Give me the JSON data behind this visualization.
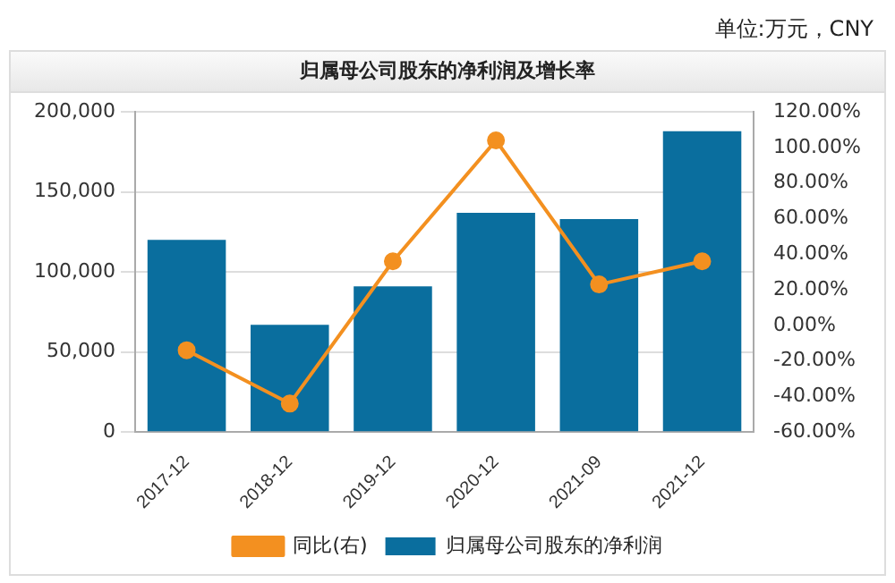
{
  "chart_data": {
    "type": "bar",
    "title": "归属母公司股东的净利润及增长率",
    "annotations": [
      "单位:万元，CNY"
    ],
    "categories": [
      "2017-12",
      "2018-12",
      "2019-12",
      "2020-12",
      "2021-09",
      "2021-12"
    ],
    "series": [
      {
        "name": "归属母公司股东的净利润",
        "color": "#0a6e9e",
        "values": [
          120000,
          67000,
          91000,
          137000,
          133000,
          188000
        ]
      },
      {
        "name": "同比(右)",
        "type": "line",
        "axis": "y2",
        "color": "#f39020",
        "values": [
          -14,
          -44,
          36,
          104,
          23,
          36
        ]
      }
    ],
    "ylim": [
      0,
      200000
    ],
    "yticks": [
      {
        "value": 0,
        "label": "0"
      },
      {
        "value": 50000,
        "label": "50,000"
      },
      {
        "value": 100000,
        "label": "100,000"
      },
      {
        "value": 150000,
        "label": "150,000"
      },
      {
        "value": 200000,
        "label": "200,000"
      }
    ],
    "y2lim": [
      -60,
      120
    ],
    "y2ticks": [
      {
        "value": -60,
        "label": "-60.00%"
      },
      {
        "value": -40,
        "label": "-40.00%"
      },
      {
        "value": -20,
        "label": "-20.00%"
      },
      {
        "value": 0,
        "label": "0.00%"
      },
      {
        "value": 20,
        "label": "20.00%"
      },
      {
        "value": 40,
        "label": "40.00%"
      },
      {
        "value": 60,
        "label": "60.00%"
      },
      {
        "value": 80,
        "label": "80.00%"
      },
      {
        "value": 100,
        "label": "100.00%"
      },
      {
        "value": 120,
        "label": "120.00%"
      }
    ],
    "grid": "y",
    "legend": "bottom",
    "marker": "circle"
  }
}
